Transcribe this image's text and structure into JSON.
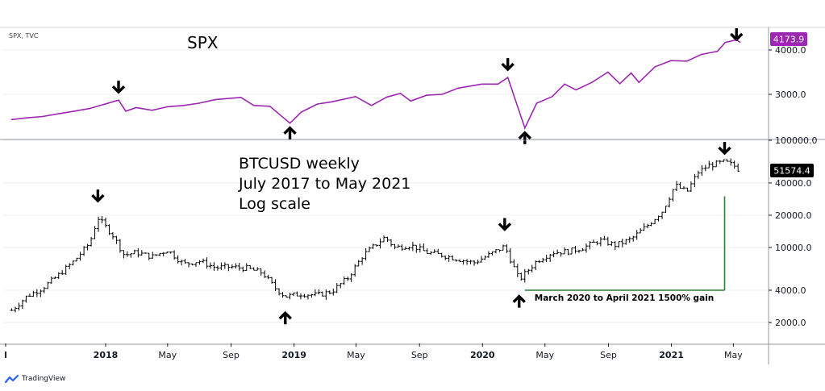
{
  "chart_data": [
    {
      "type": "line",
      "name_label": "SPX, TVC",
      "title": "SPX",
      "scale": "linear",
      "y_ticks": [
        3000,
        4000
      ],
      "y_tick_labels": [
        "3000.0",
        "4000.0"
      ],
      "last_value_label": "4173.9",
      "line_color": "#9c27b0",
      "x": [
        "2017-07-03",
        "2017-08-01",
        "2017-09-01",
        "2017-10-01",
        "2017-11-01",
        "2017-12-01",
        "2018-01-26",
        "2018-02-09",
        "2018-03-01",
        "2018-04-01",
        "2018-05-01",
        "2018-06-01",
        "2018-07-01",
        "2018-08-01",
        "2018-09-20",
        "2018-10-15",
        "2018-11-15",
        "2018-12-24",
        "2019-01-15",
        "2019-02-15",
        "2019-03-15",
        "2019-04-30",
        "2019-05-31",
        "2019-06-30",
        "2019-07-26",
        "2019-08-15",
        "2019-09-15",
        "2019-10-15",
        "2019-11-15",
        "2019-12-31",
        "2020-01-31",
        "2020-02-19",
        "2020-03-01",
        "2020-03-23",
        "2020-04-15",
        "2020-05-15",
        "2020-06-08",
        "2020-06-30",
        "2020-07-31",
        "2020-08-31",
        "2020-09-23",
        "2020-10-15",
        "2020-10-30",
        "2020-11-30",
        "2020-12-31",
        "2021-01-31",
        "2021-02-28",
        "2021-03-31",
        "2021-04-15",
        "2021-05-07",
        "2021-05-14"
      ],
      "values": [
        2430,
        2470,
        2500,
        2560,
        2620,
        2680,
        2870,
        2620,
        2700,
        2640,
        2720,
        2750,
        2800,
        2880,
        2930,
        2750,
        2730,
        2350,
        2600,
        2780,
        2830,
        2950,
        2750,
        2940,
        3020,
        2850,
        2980,
        3000,
        3140,
        3230,
        3230,
        3380,
        3000,
        2240,
        2800,
        2950,
        3230,
        3100,
        3270,
        3500,
        3240,
        3480,
        3270,
        3620,
        3760,
        3750,
        3900,
        3970,
        4170,
        4230,
        4174
      ],
      "arrows": [
        {
          "date": "2018-01-26",
          "direction": "down"
        },
        {
          "date": "2018-12-24",
          "direction": "up"
        },
        {
          "date": "2020-02-19",
          "direction": "down"
        },
        {
          "date": "2020-03-23",
          "direction": "up"
        },
        {
          "date": "2021-05-07",
          "direction": "down"
        }
      ]
    },
    {
      "type": "ohlc",
      "annotation_lines": [
        "BTCUSD weekly",
        "July 2017 to May 2021",
        "Log scale"
      ],
      "scale": "log",
      "y_ticks": [
        2000,
        4000,
        10000,
        20000,
        40000,
        100000
      ],
      "y_tick_labels": [
        "2000.0",
        "4000.0",
        "10000.0",
        "20000.0",
        "40000.0",
        "100000.0"
      ],
      "last_value_label": "51574.4",
      "x": [
        "2017-07-03",
        "2017-08-01",
        "2017-09-01",
        "2017-10-01",
        "2017-11-01",
        "2017-12-01",
        "2017-12-17",
        "2018-01-15",
        "2018-02-06",
        "2018-03-01",
        "2018-04-01",
        "2018-05-01",
        "2018-06-01",
        "2018-07-01",
        "2018-08-01",
        "2018-09-01",
        "2018-10-01",
        "2018-11-01",
        "2018-11-25",
        "2018-12-15",
        "2019-01-15",
        "2019-02-15",
        "2019-03-15",
        "2019-04-15",
        "2019-05-15",
        "2019-06-26",
        "2019-07-15",
        "2019-08-15",
        "2019-09-15",
        "2019-10-15",
        "2019-11-15",
        "2019-12-15",
        "2020-01-15",
        "2020-02-13",
        "2020-03-12",
        "2020-04-15",
        "2020-05-15",
        "2020-06-15",
        "2020-07-15",
        "2020-08-15",
        "2020-09-15",
        "2020-10-15",
        "2020-11-15",
        "2020-12-15",
        "2021-01-08",
        "2021-01-31",
        "2021-02-21",
        "2021-03-13",
        "2021-04-14",
        "2021-05-05",
        "2021-05-14"
      ],
      "values": [
        2600,
        3500,
        4200,
        5500,
        7500,
        11000,
        19000,
        13000,
        8500,
        9000,
        8200,
        9500,
        7000,
        7500,
        6500,
        6600,
        6400,
        5800,
        4200,
        3500,
        3700,
        3600,
        3900,
        5200,
        8500,
        12500,
        10000,
        10500,
        9000,
        8500,
        7800,
        7200,
        8600,
        10300,
        5000,
        7500,
        9000,
        9200,
        10000,
        11700,
        10500,
        12000,
        16000,
        22000,
        38000,
        33000,
        50000,
        58000,
        63000,
        57000,
        51574
      ],
      "arrows": [
        {
          "date": "2017-12-17",
          "direction": "down"
        },
        {
          "date": "2018-12-15",
          "direction": "up"
        },
        {
          "date": "2020-02-13",
          "direction": "down"
        },
        {
          "date": "2020-03-12",
          "direction": "up"
        },
        {
          "date": "2021-04-14",
          "direction": "down"
        }
      ],
      "gain_annotation": {
        "label": "March 2020 to April 2021  1500% gain",
        "from_date": "2020-03-23",
        "to_date": "2021-04-14",
        "from_value": 4000,
        "to_value": 30000,
        "color": "#2e7d32"
      }
    }
  ],
  "x_axis": {
    "ticks": [
      {
        "date": "2017-07-03",
        "label": "l",
        "bold": true
      },
      {
        "date": "2018-01-01",
        "label": "2018",
        "bold": true
      },
      {
        "date": "2018-05-01",
        "label": "May",
        "bold": false
      },
      {
        "date": "2018-09-01",
        "label": "Sep",
        "bold": false
      },
      {
        "date": "2019-01-01",
        "label": "2019",
        "bold": true
      },
      {
        "date": "2019-05-01",
        "label": "May",
        "bold": false
      },
      {
        "date": "2019-09-01",
        "label": "Sep",
        "bold": false
      },
      {
        "date": "2020-01-01",
        "label": "2020",
        "bold": true
      },
      {
        "date": "2020-05-01",
        "label": "May",
        "bold": false
      },
      {
        "date": "2020-09-01",
        "label": "Sep",
        "bold": false
      },
      {
        "date": "2021-01-01",
        "label": "2021",
        "bold": true
      },
      {
        "date": "2021-05-01",
        "label": "May",
        "bold": false
      }
    ]
  },
  "colors": {
    "spx_line": "#9c27b0",
    "spx_label_bg": "#9c27b0",
    "btc_bars": "#000000",
    "btc_label_bg": "#000000",
    "gain_line": "#2e7d32",
    "grid": "#e0e3eb"
  },
  "branding": {
    "label": "TradingView",
    "icon": "tradingview-logo-icon"
  }
}
